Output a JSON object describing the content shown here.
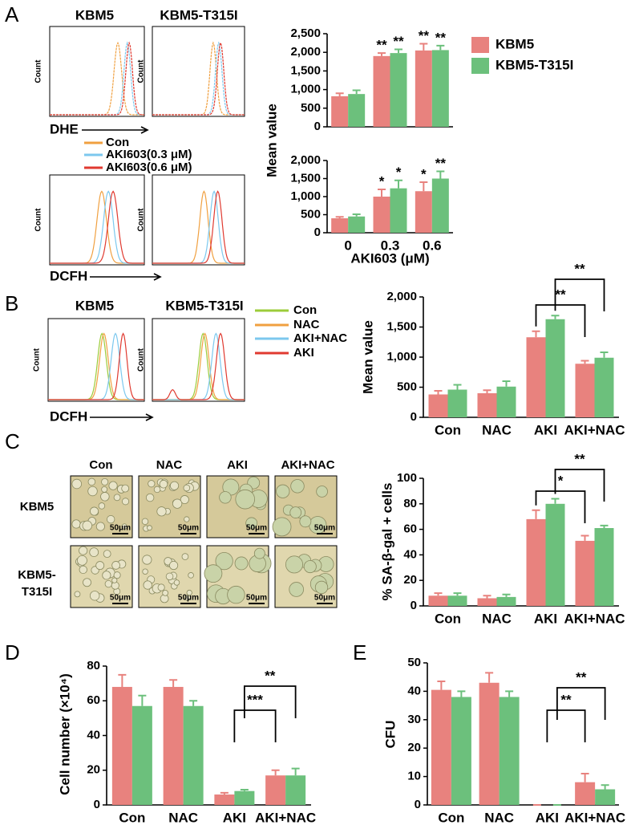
{
  "panel_labels": [
    "A",
    "B",
    "C",
    "D",
    "E"
  ],
  "flow": {
    "titles": [
      "KBM5",
      "KBM5-T315I"
    ],
    "count": "Count",
    "dhe": "DHE",
    "dcfh": "DCFH",
    "a_legend": [
      "Con",
      "AKI603(0.3 μM)",
      "AKI603(0.6 μM)"
    ],
    "b_legend": [
      "Con",
      "NAC",
      "AKI+NAC",
      "AKI"
    ]
  },
  "micrographs": {
    "columns": [
      "Con",
      "NAC",
      "AKI",
      "AKI+NAC"
    ],
    "rows": [
      [
        "KBM5"
      ],
      [
        "KBM5-",
        "T315I"
      ]
    ],
    "scale_bar": "50μm"
  },
  "chart_data": [
    {
      "type": "bar",
      "ylabel": "Mean value",
      "categories": [
        null,
        null,
        null
      ],
      "ylim": [
        0,
        2500
      ],
      "yticks": [
        0,
        500,
        {
          "value": 1000,
          "label": "1,000"
        },
        {
          "value": 1500,
          "label": "1,500"
        },
        {
          "value": 2000,
          "label": "2,000"
        },
        {
          "value": 2500,
          "label": "2,500"
        }
      ],
      "legend": "upper right",
      "series": [
        {
          "name": "KBM5",
          "color": "#e8827e",
          "values": [
            820,
            1900,
            2050
          ],
          "errors": [
            80,
            80,
            180
          ],
          "annotations": [
            null,
            "**",
            "**"
          ]
        },
        {
          "name": "KBM5-T315I",
          "color": "#6cc07c",
          "values": [
            880,
            1980,
            2060
          ],
          "errors": [
            100,
            100,
            120
          ],
          "annotations": [
            null,
            "**",
            "**"
          ]
        }
      ]
    },
    {
      "type": "bar",
      "xlabel": "AKI603 (μM)",
      "categories": [
        "0",
        "0.3",
        "0.6"
      ],
      "ylim": [
        0,
        2000
      ],
      "yticks": [
        0,
        500,
        {
          "value": 1000,
          "label": "1,000"
        },
        {
          "value": 1500,
          "label": "1,500"
        },
        {
          "value": 2000,
          "label": "2,000"
        }
      ],
      "series": [
        {
          "color": "#e8827e",
          "values": [
            400,
            1000,
            1150
          ],
          "errors": [
            40,
            200,
            250
          ],
          "annotations": [
            null,
            "*",
            "*"
          ]
        },
        {
          "color": "#6cc07c",
          "values": [
            450,
            1230,
            1500
          ],
          "errors": [
            60,
            220,
            200
          ],
          "annotations": [
            null,
            "*",
            "**"
          ]
        }
      ]
    },
    {
      "type": "bar",
      "ylabel": "Mean value",
      "categories": [
        "Con",
        "NAC",
        "AKI",
        "AKI+NAC"
      ],
      "ylim": [
        0,
        2000
      ],
      "yticks": [
        0,
        500,
        {
          "value": 1000,
          "label": "1,000"
        },
        {
          "value": 1500,
          "label": "1,500"
        },
        {
          "value": 2000,
          "label": "2,000"
        }
      ],
      "comparisons": [
        "**",
        "**"
      ],
      "series": [
        {
          "color": "#e8827e",
          "values": [
            380,
            400,
            1330,
            890
          ],
          "errors": [
            60,
            50,
            100,
            50
          ]
        },
        {
          "color": "#6cc07c",
          "values": [
            460,
            510,
            1630,
            990
          ],
          "errors": [
            80,
            90,
            60,
            90
          ]
        }
      ]
    },
    {
      "type": "bar",
      "ylabel": "% SA-β-gal + cells",
      "categories": [
        "Con",
        "NAC",
        "AKI",
        "AKI+NAC"
      ],
      "ylim": [
        0,
        100
      ],
      "yticks": [
        0,
        20,
        40,
        60,
        80,
        100
      ],
      "comparisons": [
        "*",
        "**"
      ],
      "series": [
        {
          "color": "#e8827e",
          "values": [
            8,
            6,
            68,
            51
          ],
          "errors": [
            2,
            2,
            7,
            4
          ]
        },
        {
          "color": "#6cc07c",
          "values": [
            8,
            7,
            80,
            61
          ],
          "errors": [
            2,
            2,
            4,
            2
          ]
        }
      ]
    },
    {
      "type": "bar",
      "ylabel": "Cell number (×10⁴)",
      "categories": [
        "Con",
        "NAC",
        "AKI",
        "AKI+NAC"
      ],
      "ylim": [
        0,
        80
      ],
      "yticks": [
        0,
        20,
        40,
        60,
        80
      ],
      "comparisons": [
        "***",
        "**"
      ],
      "series": [
        {
          "color": "#e8827e",
          "values": [
            68,
            68,
            6,
            17
          ],
          "errors": [
            7,
            4,
            1,
            3
          ]
        },
        {
          "color": "#6cc07c",
          "values": [
            57,
            57,
            8,
            17
          ],
          "errors": [
            6,
            3,
            0.8,
            4
          ]
        }
      ]
    },
    {
      "type": "bar",
      "ylabel": "CFU",
      "categories": [
        "Con",
        "NAC",
        "AKI",
        "AKI+NAC"
      ],
      "ylim": [
        0,
        50
      ],
      "yticks": [
        0,
        10,
        20,
        30,
        40,
        50
      ],
      "comparisons": [
        "**",
        "**"
      ],
      "series": [
        {
          "color": "#e8827e",
          "values": [
            40.5,
            43,
            0,
            8
          ],
          "errors": [
            3,
            3.5,
            0,
            3
          ]
        },
        {
          "color": "#6cc07c",
          "values": [
            38,
            38,
            0,
            5.5
          ],
          "errors": [
            2,
            2,
            0,
            1.5
          ]
        }
      ]
    }
  ]
}
